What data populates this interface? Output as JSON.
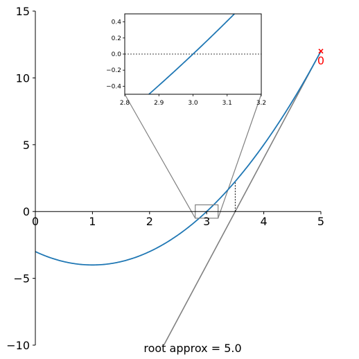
{
  "chart_data": {
    "type": "line",
    "function": "x^2 - 2x - 3",
    "series": [
      {
        "x": [
          0,
          0.5,
          1,
          1.5,
          2,
          2.5,
          3,
          3.5,
          4,
          4.5,
          5
        ],
        "y": [
          -3,
          -3.75,
          -4,
          -3.75,
          -3,
          -1.75,
          0,
          2.25,
          5,
          8.25,
          12
        ]
      }
    ],
    "xlim": [
      0,
      5
    ],
    "ylim": [
      -10,
      15
    ],
    "xticks": [
      "0",
      "1",
      "2",
      "3",
      "4",
      "5"
    ],
    "yticks": [
      "−10",
      "−5",
      "0",
      "5",
      "10",
      "15"
    ],
    "tangent": {
      "x0": 5,
      "y0": 12,
      "slope": 8,
      "x_intercept": 3.5
    },
    "marker": {
      "x": 5,
      "y": 12,
      "label": "0",
      "color": "#ff0000"
    },
    "zoom_region": {
      "xlim": [
        2.8,
        3.2
      ],
      "ylim": [
        -0.5,
        0.5
      ]
    },
    "inset": {
      "xlim": [
        2.8,
        3.2
      ],
      "ylim": [
        -0.5,
        0.5
      ],
      "xticks": [
        "2.8",
        "2.9",
        "3.0",
        "3.1",
        "3.2"
      ],
      "yticks": [
        "−0.4",
        "−0.2",
        "0.0",
        "0.2",
        "0.4"
      ],
      "reference_y": 0
    },
    "caption": "root approx = 5.0",
    "colors": {
      "curve": "#1f77b4",
      "tangent": "#808080",
      "marker": "#ff0000",
      "zoom": "#808080"
    }
  }
}
